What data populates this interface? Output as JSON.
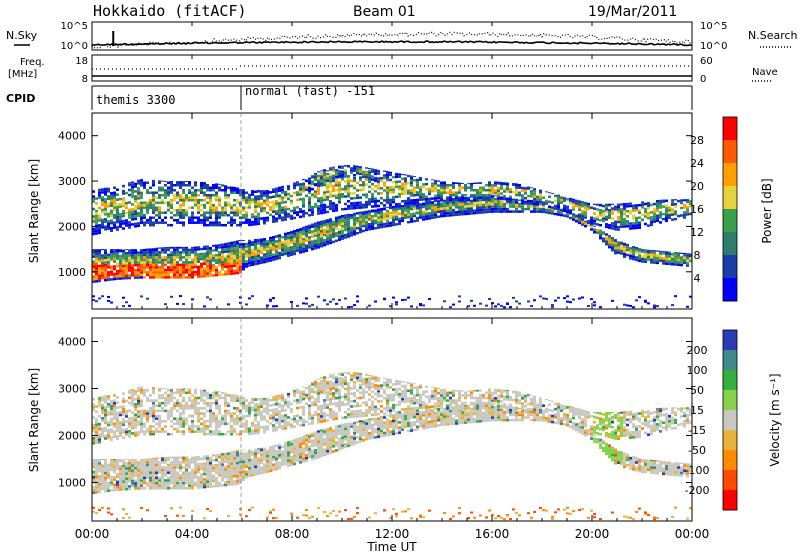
{
  "header": {
    "station": "Hokkaido (fitACF)",
    "beam": "Beam 01",
    "date": "19/Mar/2011"
  },
  "chart_data": {
    "type": "heatmap",
    "panels": {
      "noise": {
        "left_label": "N.Sky",
        "right_label": "N.Search",
        "left_ticks": [
          "10^5",
          "10^0"
        ],
        "right_ticks": [
          "10^5",
          "10^0"
        ],
        "right_legend_style": "dotted"
      },
      "freq": {
        "left_label_top": "Freq.",
        "left_label_bottom": "[MHz]",
        "left_ticks": [
          "18",
          "8"
        ],
        "right_label": "Nave",
        "right_ticks": [
          "60",
          "0"
        ],
        "right_legend_style": "dotted"
      },
      "cpid": {
        "label": "CPID",
        "segments": [
          {
            "start_hour": 0,
            "end_hour": 6,
            "name": "themis 3300"
          },
          {
            "start_hour": 6,
            "end_hour": 24,
            "name": "normal (fast) -151"
          }
        ]
      },
      "power": {
        "ylabel": "Slant Range [km]",
        "yticks": [
          "4000",
          "3000",
          "2000",
          "1000"
        ],
        "ytick_values": [
          4000,
          3000,
          2000,
          1000
        ],
        "ylim": [
          180,
          4500
        ],
        "colorbar_label": "Power [dB]",
        "colorbar_ticks": [
          "28",
          "24",
          "20",
          "16",
          "12",
          "8",
          "4"
        ],
        "colorbar_colors": [
          "#ff0000",
          "#ff5a00",
          "#ffa000",
          "#e6d23c",
          "#3ca04b",
          "#2f7d6e",
          "#1b3ea8",
          "#0000ff"
        ]
      },
      "velocity": {
        "ylabel": "Slant Range [km]",
        "yticks": [
          "4000",
          "3000",
          "2000",
          "1000"
        ],
        "ytick_values": [
          4000,
          3000,
          2000,
          1000
        ],
        "ylim": [
          180,
          4500
        ],
        "colorbar_label": "Velocity [m s⁻¹]",
        "colorbar_ticks": [
          "200",
          "100",
          "50",
          "15",
          "-15",
          "-50",
          "-100",
          "-200"
        ],
        "colorbar_colors": [
          "#2b3bb4",
          "#3f8a8c",
          "#34b040",
          "#86d24a",
          "#c8c8c0",
          "#e6b33c",
          "#ff8a00",
          "#ff4a00",
          "#ff0000"
        ]
      }
    },
    "xaxis": {
      "label": "Time UT",
      "ticks": [
        "00:00",
        "04:00",
        "08:00",
        "12:00",
        "16:00",
        "20:00",
        "00:00"
      ],
      "tick_hours": [
        0,
        4,
        8,
        12,
        16,
        20,
        24
      ],
      "range_hours": [
        0,
        24
      ]
    },
    "echo_bands": [
      {
        "name": "near-range band",
        "hours": [
          0,
          1,
          2,
          3,
          4,
          5,
          5.9,
          6.2,
          7,
          8,
          9,
          10,
          11,
          12,
          13,
          14,
          15,
          16,
          17,
          18,
          19,
          20,
          21,
          22,
          23,
          24
        ],
        "lower_km": [
          750,
          820,
          850,
          850,
          850,
          900,
          950,
          1100,
          1200,
          1350,
          1500,
          1700,
          1900,
          2000,
          2100,
          2200,
          2250,
          2300,
          2300,
          2300,
          2200,
          1900,
          1350,
          1200,
          1150,
          1100
        ],
        "upper_km": [
          1500,
          1500,
          1500,
          1550,
          1550,
          1600,
          1700,
          1700,
          1750,
          1900,
          2100,
          2250,
          2350,
          2450,
          2500,
          2600,
          2650,
          2700,
          2600,
          2500,
          2350,
          2050,
          1700,
          1500,
          1450,
          1400
        ]
      },
      {
        "name": "far-range band",
        "hours": [
          0,
          1,
          2,
          3,
          4,
          5,
          5.9,
          6.2,
          7,
          8,
          9,
          10,
          11,
          12,
          13,
          14,
          15,
          16,
          17,
          18,
          19,
          20,
          21,
          22,
          23,
          24
        ],
        "lower_km": [
          1800,
          1900,
          2000,
          2000,
          2000,
          2000,
          2000,
          2000,
          2050,
          2150,
          2250,
          2350,
          2400,
          2450,
          2500,
          2550,
          2550,
          2550,
          2500,
          2450,
          2300,
          2050,
          1900,
          1950,
          2100,
          2200
        ],
        "upper_km": [
          2800,
          2900,
          3050,
          3000,
          3000,
          2950,
          2850,
          2800,
          2800,
          2950,
          3150,
          3350,
          3300,
          3200,
          3100,
          3000,
          2950,
          3000,
          2950,
          2800,
          2650,
          2500,
          2500,
          2550,
          2600,
          2600
        ]
      },
      {
        "name": "upper arc",
        "hours": [
          8.5,
          9,
          9.5,
          10,
          10.5,
          11,
          11.5
        ],
        "lower_km": [
          2700,
          2850,
          3000,
          3100,
          3100,
          3050,
          2950
        ],
        "upper_km": [
          3000,
          3200,
          3300,
          3350,
          3350,
          3300,
          3200
        ]
      }
    ],
    "peak_power_band": {
      "hours": [
        0,
        1,
        2,
        3,
        4,
        5,
        5.9
      ],
      "lower_km": [
        780,
        830,
        850,
        850,
        850,
        880,
        920
      ],
      "upper_km": [
        1150,
        1150,
        1150,
        1150,
        1150,
        1150,
        1200
      ]
    }
  }
}
